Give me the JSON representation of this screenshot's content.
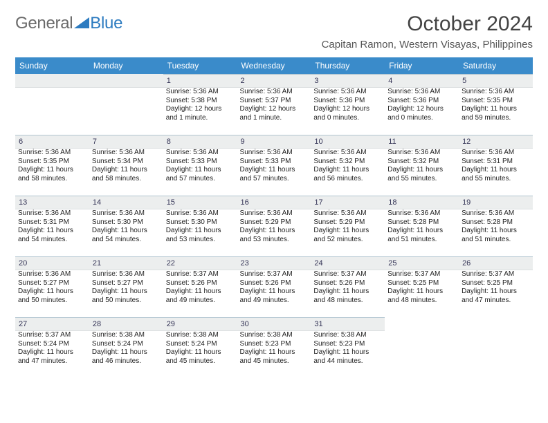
{
  "brand": {
    "part1": "General",
    "part2": "Blue"
  },
  "title": "October 2024",
  "subtitle": "Capitan Ramon, Western Visayas, Philippines",
  "colors": {
    "header_bg": "#3a8bca",
    "header_text": "#ffffff",
    "daynum_bg": "#eceeee",
    "daynum_border_top": "#b0c4cf",
    "logo_gray": "#6a6a6a",
    "logo_blue": "#2c7bc0"
  },
  "weekdays": [
    "Sunday",
    "Monday",
    "Tuesday",
    "Wednesday",
    "Thursday",
    "Friday",
    "Saturday"
  ],
  "grid": {
    "start_weekday_index": 2,
    "rows": 5,
    "cols": 7
  },
  "days": [
    {
      "n": 1,
      "sunrise": "5:36 AM",
      "sunset": "5:38 PM",
      "daylight": "12 hours and 1 minute."
    },
    {
      "n": 2,
      "sunrise": "5:36 AM",
      "sunset": "5:37 PM",
      "daylight": "12 hours and 1 minute."
    },
    {
      "n": 3,
      "sunrise": "5:36 AM",
      "sunset": "5:36 PM",
      "daylight": "12 hours and 0 minutes."
    },
    {
      "n": 4,
      "sunrise": "5:36 AM",
      "sunset": "5:36 PM",
      "daylight": "12 hours and 0 minutes."
    },
    {
      "n": 5,
      "sunrise": "5:36 AM",
      "sunset": "5:35 PM",
      "daylight": "11 hours and 59 minutes."
    },
    {
      "n": 6,
      "sunrise": "5:36 AM",
      "sunset": "5:35 PM",
      "daylight": "11 hours and 58 minutes."
    },
    {
      "n": 7,
      "sunrise": "5:36 AM",
      "sunset": "5:34 PM",
      "daylight": "11 hours and 58 minutes."
    },
    {
      "n": 8,
      "sunrise": "5:36 AM",
      "sunset": "5:33 PM",
      "daylight": "11 hours and 57 minutes."
    },
    {
      "n": 9,
      "sunrise": "5:36 AM",
      "sunset": "5:33 PM",
      "daylight": "11 hours and 57 minutes."
    },
    {
      "n": 10,
      "sunrise": "5:36 AM",
      "sunset": "5:32 PM",
      "daylight": "11 hours and 56 minutes."
    },
    {
      "n": 11,
      "sunrise": "5:36 AM",
      "sunset": "5:32 PM",
      "daylight": "11 hours and 55 minutes."
    },
    {
      "n": 12,
      "sunrise": "5:36 AM",
      "sunset": "5:31 PM",
      "daylight": "11 hours and 55 minutes."
    },
    {
      "n": 13,
      "sunrise": "5:36 AM",
      "sunset": "5:31 PM",
      "daylight": "11 hours and 54 minutes."
    },
    {
      "n": 14,
      "sunrise": "5:36 AM",
      "sunset": "5:30 PM",
      "daylight": "11 hours and 54 minutes."
    },
    {
      "n": 15,
      "sunrise": "5:36 AM",
      "sunset": "5:30 PM",
      "daylight": "11 hours and 53 minutes."
    },
    {
      "n": 16,
      "sunrise": "5:36 AM",
      "sunset": "5:29 PM",
      "daylight": "11 hours and 53 minutes."
    },
    {
      "n": 17,
      "sunrise": "5:36 AM",
      "sunset": "5:29 PM",
      "daylight": "11 hours and 52 minutes."
    },
    {
      "n": 18,
      "sunrise": "5:36 AM",
      "sunset": "5:28 PM",
      "daylight": "11 hours and 51 minutes."
    },
    {
      "n": 19,
      "sunrise": "5:36 AM",
      "sunset": "5:28 PM",
      "daylight": "11 hours and 51 minutes."
    },
    {
      "n": 20,
      "sunrise": "5:36 AM",
      "sunset": "5:27 PM",
      "daylight": "11 hours and 50 minutes."
    },
    {
      "n": 21,
      "sunrise": "5:36 AM",
      "sunset": "5:27 PM",
      "daylight": "11 hours and 50 minutes."
    },
    {
      "n": 22,
      "sunrise": "5:37 AM",
      "sunset": "5:26 PM",
      "daylight": "11 hours and 49 minutes."
    },
    {
      "n": 23,
      "sunrise": "5:37 AM",
      "sunset": "5:26 PM",
      "daylight": "11 hours and 49 minutes."
    },
    {
      "n": 24,
      "sunrise": "5:37 AM",
      "sunset": "5:26 PM",
      "daylight": "11 hours and 48 minutes."
    },
    {
      "n": 25,
      "sunrise": "5:37 AM",
      "sunset": "5:25 PM",
      "daylight": "11 hours and 48 minutes."
    },
    {
      "n": 26,
      "sunrise": "5:37 AM",
      "sunset": "5:25 PM",
      "daylight": "11 hours and 47 minutes."
    },
    {
      "n": 27,
      "sunrise": "5:37 AM",
      "sunset": "5:24 PM",
      "daylight": "11 hours and 47 minutes."
    },
    {
      "n": 28,
      "sunrise": "5:38 AM",
      "sunset": "5:24 PM",
      "daylight": "11 hours and 46 minutes."
    },
    {
      "n": 29,
      "sunrise": "5:38 AM",
      "sunset": "5:24 PM",
      "daylight": "11 hours and 45 minutes."
    },
    {
      "n": 30,
      "sunrise": "5:38 AM",
      "sunset": "5:23 PM",
      "daylight": "11 hours and 45 minutes."
    },
    {
      "n": 31,
      "sunrise": "5:38 AM",
      "sunset": "5:23 PM",
      "daylight": "11 hours and 44 minutes."
    }
  ],
  "labels": {
    "sunrise": "Sunrise:",
    "sunset": "Sunset:",
    "daylight": "Daylight:"
  }
}
